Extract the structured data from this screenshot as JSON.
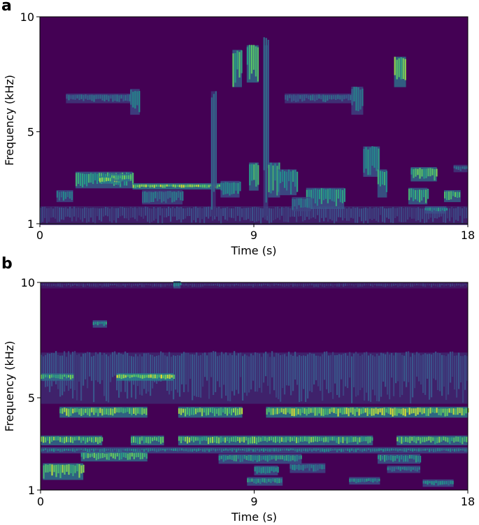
{
  "chart_data": [
    {
      "type": "heatmap",
      "panel_label": "a",
      "xlabel": "Time (s)",
      "ylabel": "Frequency (kHz)",
      "xlim": [
        0,
        18
      ],
      "ylim": [
        1,
        10
      ],
      "x_ticks": [
        "0",
        "9",
        "18"
      ],
      "y_ticks": [
        "1",
        "5",
        "10"
      ],
      "colormap": [
        "#440154",
        "#3b528b",
        "#21918c",
        "#5ec962",
        "#fde725"
      ],
      "events": [
        {
          "t0": 0.0,
          "t1": 18.0,
          "f0": 1.0,
          "f1": 1.7,
          "level": 0.25
        },
        {
          "t0": 1.5,
          "t1": 3.9,
          "f0": 2.6,
          "f1": 3.2,
          "level": 0.7
        },
        {
          "t0": 2.5,
          "t1": 3.4,
          "f0": 2.8,
          "f1": 3.0,
          "level": 0.95
        },
        {
          "t0": 3.0,
          "t1": 3.8,
          "f0": 2.9,
          "f1": 3.1,
          "level": 0.8
        },
        {
          "t0": 0.7,
          "t1": 1.4,
          "f0": 2.0,
          "f1": 2.4,
          "level": 0.5
        },
        {
          "t0": 8.8,
          "t1": 9.2,
          "f0": 2.5,
          "f1": 3.6,
          "level": 0.75
        },
        {
          "t0": 3.9,
          "t1": 7.6,
          "f0": 2.55,
          "f1": 2.7,
          "level": 0.95
        },
        {
          "t0": 4.3,
          "t1": 6.0,
          "f0": 1.9,
          "f1": 2.4,
          "level": 0.45
        },
        {
          "t0": 1.1,
          "t1": 3.8,
          "f0": 6.3,
          "f1": 6.6,
          "level": 0.4
        },
        {
          "t0": 3.8,
          "t1": 4.2,
          "f0": 5.8,
          "f1": 6.8,
          "level": 0.5
        },
        {
          "t0": 7.2,
          "t1": 7.4,
          "f0": 1.4,
          "f1": 6.7,
          "level": 0.35
        },
        {
          "t0": 7.6,
          "t1": 8.4,
          "f0": 2.2,
          "f1": 2.8,
          "level": 0.55
        },
        {
          "t0": 8.1,
          "t1": 8.5,
          "f0": 7.0,
          "f1": 8.5,
          "level": 0.75
        },
        {
          "t0": 8.7,
          "t1": 9.2,
          "f0": 7.2,
          "f1": 8.7,
          "level": 0.8
        },
        {
          "t0": 9.4,
          "t1": 9.6,
          "f0": 1.4,
          "f1": 8.7,
          "level": 0.4
        },
        {
          "t0": 9.6,
          "t1": 10.1,
          "f0": 2.2,
          "f1": 3.6,
          "level": 0.65
        },
        {
          "t0": 10.0,
          "t1": 10.8,
          "f0": 2.3,
          "f1": 3.3,
          "level": 0.6
        },
        {
          "t0": 10.3,
          "t1": 13.2,
          "f0": 6.3,
          "f1": 6.6,
          "level": 0.4
        },
        {
          "t0": 13.1,
          "t1": 13.6,
          "f0": 5.8,
          "f1": 6.9,
          "level": 0.45
        },
        {
          "t0": 11.2,
          "t1": 12.8,
          "f0": 1.7,
          "f1": 2.5,
          "level": 0.6
        },
        {
          "t0": 10.6,
          "t1": 11.4,
          "f0": 1.6,
          "f1": 2.1,
          "level": 0.45
        },
        {
          "t0": 13.6,
          "t1": 14.3,
          "f0": 3.1,
          "f1": 4.3,
          "level": 0.6
        },
        {
          "t0": 14.2,
          "t1": 14.6,
          "f0": 2.2,
          "f1": 3.3,
          "level": 0.7
        },
        {
          "t0": 14.9,
          "t1": 15.4,
          "f0": 7.0,
          "f1": 8.2,
          "level": 0.85
        },
        {
          "t0": 15.6,
          "t1": 16.7,
          "f0": 2.9,
          "f1": 3.4,
          "level": 0.8
        },
        {
          "t0": 15.5,
          "t1": 16.3,
          "f0": 1.9,
          "f1": 2.5,
          "level": 0.7
        },
        {
          "t0": 16.2,
          "t1": 17.1,
          "f0": 1.5,
          "f1": 1.7,
          "level": 0.55
        },
        {
          "t0": 17.0,
          "t1": 17.7,
          "f0": 2.0,
          "f1": 2.4,
          "level": 0.75
        },
        {
          "t0": 17.4,
          "t1": 18.0,
          "f0": 3.3,
          "f1": 3.5,
          "level": 0.4
        }
      ]
    },
    {
      "type": "heatmap",
      "panel_label": "b",
      "xlabel": "Time (s)",
      "ylabel": "Frequency (kHz)",
      "xlim": [
        0,
        18
      ],
      "ylim": [
        1,
        10
      ],
      "x_ticks": [
        "0",
        "9",
        "18"
      ],
      "y_ticks": [
        "1",
        "5",
        "10"
      ],
      "colormap": [
        "#440154",
        "#3b528b",
        "#21918c",
        "#5ec962",
        "#fde725"
      ],
      "events": [
        {
          "t0": 0.0,
          "t1": 18.0,
          "f0": 4.8,
          "f1": 6.9,
          "level": 0.28
        },
        {
          "t0": 0.0,
          "t1": 18.0,
          "f0": 9.8,
          "f1": 9.95,
          "level": 0.2
        },
        {
          "t0": 0.0,
          "t1": 1.4,
          "f0": 5.8,
          "f1": 6.0,
          "level": 0.8
        },
        {
          "t0": 3.2,
          "t1": 5.6,
          "f0": 5.8,
          "f1": 6.0,
          "level": 1.0
        },
        {
          "t0": 2.2,
          "t1": 2.8,
          "f0": 8.1,
          "f1": 8.3,
          "level": 0.6
        },
        {
          "t0": 0.8,
          "t1": 4.5,
          "f0": 4.2,
          "f1": 4.55,
          "level": 0.9
        },
        {
          "t0": 5.8,
          "t1": 8.5,
          "f0": 4.2,
          "f1": 4.55,
          "level": 0.9
        },
        {
          "t0": 9.5,
          "t1": 18.0,
          "f0": 4.2,
          "f1": 4.55,
          "level": 0.95
        },
        {
          "t0": 0.0,
          "t1": 2.6,
          "f0": 3.0,
          "f1": 3.3,
          "level": 0.85
        },
        {
          "t0": 3.8,
          "t1": 5.2,
          "f0": 3.0,
          "f1": 3.3,
          "level": 0.8
        },
        {
          "t0": 5.8,
          "t1": 12.0,
          "f0": 3.0,
          "f1": 3.3,
          "level": 0.85
        },
        {
          "t0": 12.0,
          "t1": 14.0,
          "f0": 3.0,
          "f1": 3.3,
          "level": 0.8
        },
        {
          "t0": 15.0,
          "t1": 18.0,
          "f0": 3.0,
          "f1": 3.3,
          "level": 0.8
        },
        {
          "t0": 0.0,
          "t1": 18.0,
          "f0": 2.65,
          "f1": 2.8,
          "level": 0.5
        },
        {
          "t0": 1.7,
          "t1": 4.5,
          "f0": 2.3,
          "f1": 2.6,
          "level": 0.8
        },
        {
          "t0": 7.5,
          "t1": 11.0,
          "f0": 2.2,
          "f1": 2.5,
          "level": 0.6
        },
        {
          "t0": 14.2,
          "t1": 16.0,
          "f0": 2.2,
          "f1": 2.5,
          "level": 0.6
        },
        {
          "t0": 0.1,
          "t1": 1.8,
          "f0": 1.5,
          "f1": 2.1,
          "level": 0.9
        },
        {
          "t0": 9.0,
          "t1": 10.0,
          "f0": 1.7,
          "f1": 2.0,
          "level": 0.55
        },
        {
          "t0": 10.5,
          "t1": 12.0,
          "f0": 1.8,
          "f1": 2.1,
          "level": 0.5
        },
        {
          "t0": 8.7,
          "t1": 10.2,
          "f0": 1.25,
          "f1": 1.5,
          "level": 0.6
        },
        {
          "t0": 13.0,
          "t1": 14.3,
          "f0": 1.3,
          "f1": 1.5,
          "level": 0.55
        },
        {
          "t0": 16.1,
          "t1": 17.4,
          "f0": 1.2,
          "f1": 1.4,
          "level": 0.55
        },
        {
          "t0": 14.6,
          "t1": 16.0,
          "f0": 1.8,
          "f1": 2.0,
          "level": 0.5
        },
        {
          "t0": 5.6,
          "t1": 5.9,
          "f0": 9.8,
          "f1": 10.0,
          "level": 0.6
        }
      ]
    }
  ]
}
